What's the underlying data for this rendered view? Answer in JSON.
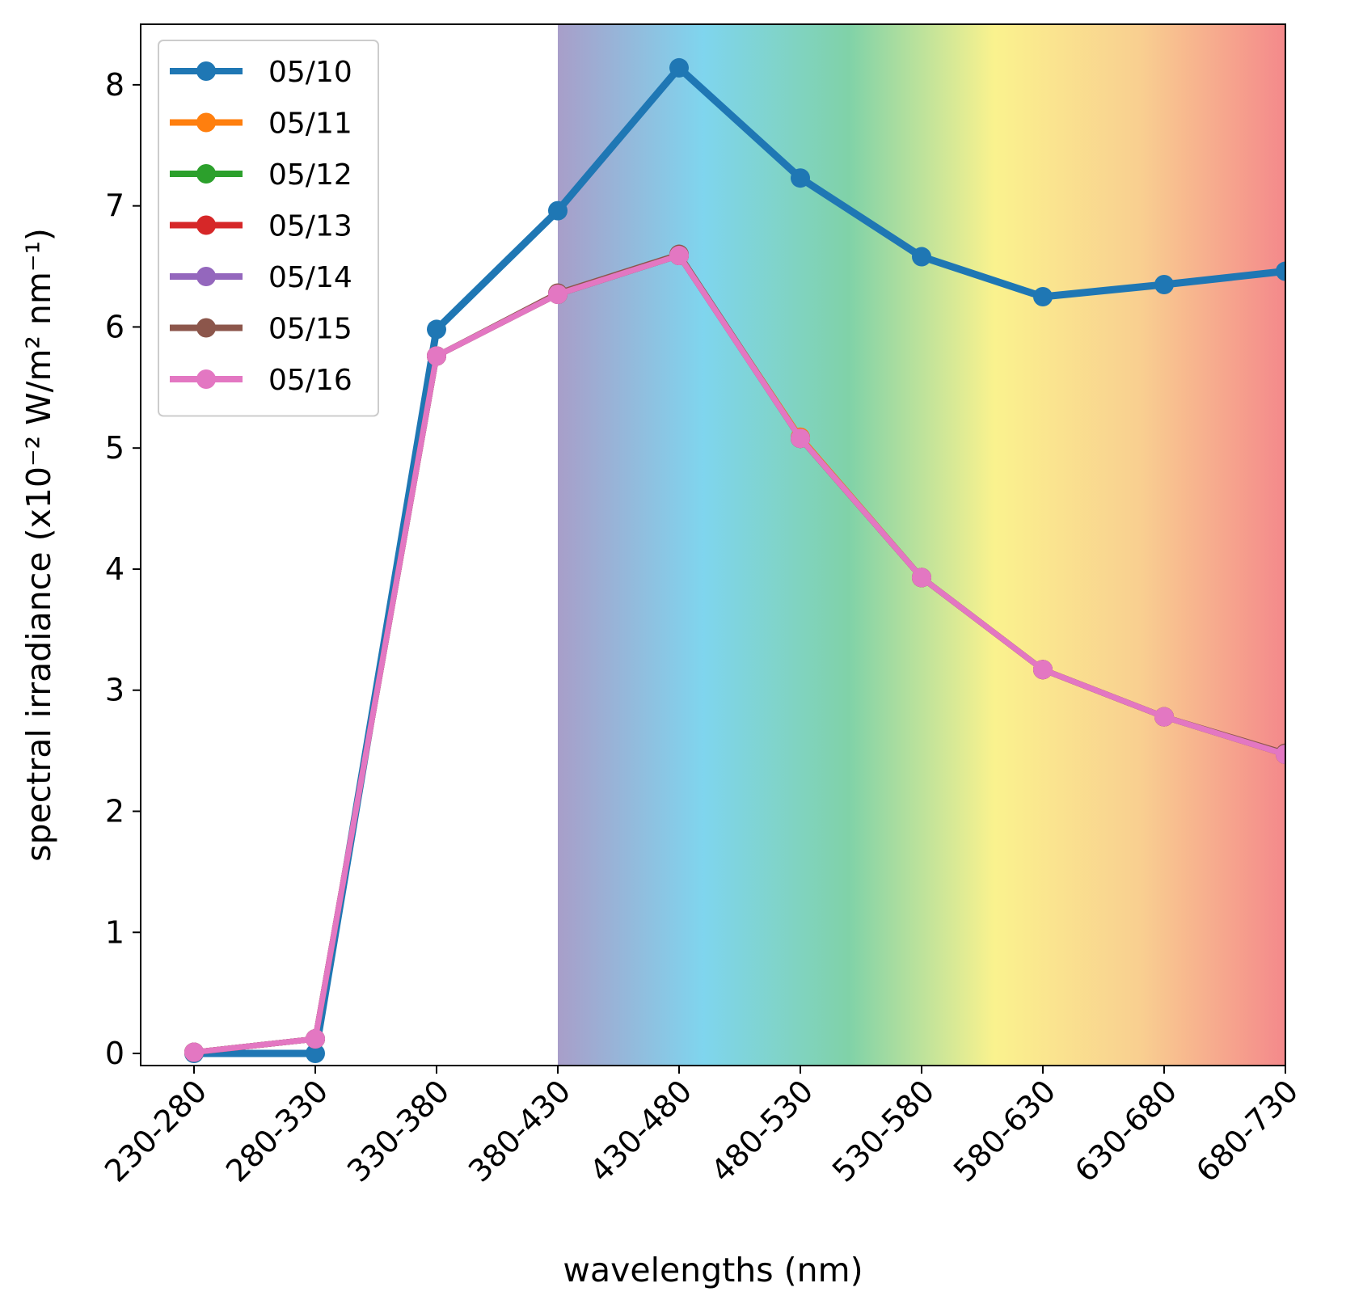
{
  "chart_data": {
    "type": "line",
    "xlabel": "wavelengths (nm)",
    "ylabel": "spectral irradiance (x10⁻² W/m² nm⁻¹)",
    "ylim": [
      -0.1,
      8.5
    ],
    "yticks": [
      "0",
      "1",
      "2",
      "3",
      "4",
      "5",
      "6",
      "7",
      "8"
    ],
    "categories": [
      "230-280",
      "280-330",
      "330-380",
      "380-430",
      "430-480",
      "480-530",
      "530-580",
      "580-630",
      "630-680",
      "680-730"
    ],
    "grid": false,
    "legend_position": "top-left",
    "visible_spectrum_background": {
      "from_category": "380-430",
      "to_category": "680-730",
      "colors": [
        "#a89ec9",
        "#7fd5ee",
        "#80d2a8",
        "#faf28e",
        "#f9cf90",
        "#f4898b"
      ]
    },
    "series": [
      {
        "name": "05/10",
        "color": "#1f77b4",
        "values": [
          0.0,
          0.0,
          5.98,
          6.96,
          8.14,
          7.23,
          6.58,
          6.25,
          6.35,
          6.46
        ]
      },
      {
        "name": "05/11",
        "color": "#ff7f0e",
        "values": [
          0.01,
          0.12,
          5.76,
          6.27,
          6.59,
          5.09,
          3.93,
          3.17,
          2.78,
          2.47
        ]
      },
      {
        "name": "05/12",
        "color": "#2ca02c",
        "values": [
          0.01,
          0.12,
          5.76,
          6.27,
          6.59,
          5.08,
          3.93,
          3.17,
          2.78,
          2.47
        ]
      },
      {
        "name": "05/13",
        "color": "#d62728",
        "values": [
          0.01,
          0.12,
          5.76,
          6.27,
          6.59,
          5.08,
          3.93,
          3.17,
          2.78,
          2.47
        ]
      },
      {
        "name": "05/14",
        "color": "#9467bd",
        "values": [
          0.01,
          0.12,
          5.76,
          6.27,
          6.59,
          5.08,
          3.93,
          3.17,
          2.78,
          2.47
        ]
      },
      {
        "name": "05/15",
        "color": "#8c564b",
        "values": [
          0.01,
          0.12,
          5.76,
          6.28,
          6.6,
          5.08,
          3.93,
          3.17,
          2.78,
          2.48
        ]
      },
      {
        "name": "05/16",
        "color": "#e377c2",
        "values": [
          0.01,
          0.12,
          5.76,
          6.27,
          6.59,
          5.08,
          3.93,
          3.17,
          2.78,
          2.47
        ]
      }
    ]
  }
}
